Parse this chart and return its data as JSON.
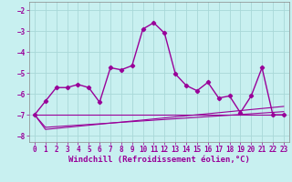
{
  "xlabel": "Windchill (Refroidissement éolien,°C)",
  "bg_color": "#c8f0f0",
  "grid_color": "#a8d8d8",
  "line_color": "#990099",
  "xlim": [
    -0.5,
    23.5
  ],
  "ylim": [
    -8.3,
    -1.6
  ],
  "yticks": [
    -8,
    -7,
    -6,
    -5,
    -4,
    -3,
    -2
  ],
  "xticks": [
    0,
    1,
    2,
    3,
    4,
    5,
    6,
    7,
    8,
    9,
    10,
    11,
    12,
    13,
    14,
    15,
    16,
    17,
    18,
    19,
    20,
    21,
    22,
    23
  ],
  "line1_x": [
    0,
    1,
    2,
    3,
    4,
    5,
    6,
    7,
    8,
    9,
    10,
    11,
    12,
    13,
    14,
    15,
    16,
    17,
    18,
    19,
    20,
    21,
    22,
    23
  ],
  "line1_y": [
    -7.0,
    -6.35,
    -5.7,
    -5.7,
    -5.55,
    -5.7,
    -6.4,
    -4.75,
    -4.85,
    -4.65,
    -2.9,
    -2.6,
    -3.1,
    -5.05,
    -5.6,
    -5.85,
    -5.45,
    -6.2,
    -6.1,
    -6.9,
    -6.1,
    -4.75,
    -7.0,
    -7.0
  ],
  "line2_x": [
    0,
    23
  ],
  "line2_y": [
    -7.0,
    -7.0
  ],
  "line3_x": [
    0,
    1,
    23
  ],
  "line3_y": [
    -7.0,
    -7.7,
    -6.6
  ],
  "line4_x": [
    0,
    1,
    23
  ],
  "line4_y": [
    -7.0,
    -7.6,
    -6.85
  ],
  "xlabel_fontsize": 6.5,
  "tick_fontsize": 5.5
}
